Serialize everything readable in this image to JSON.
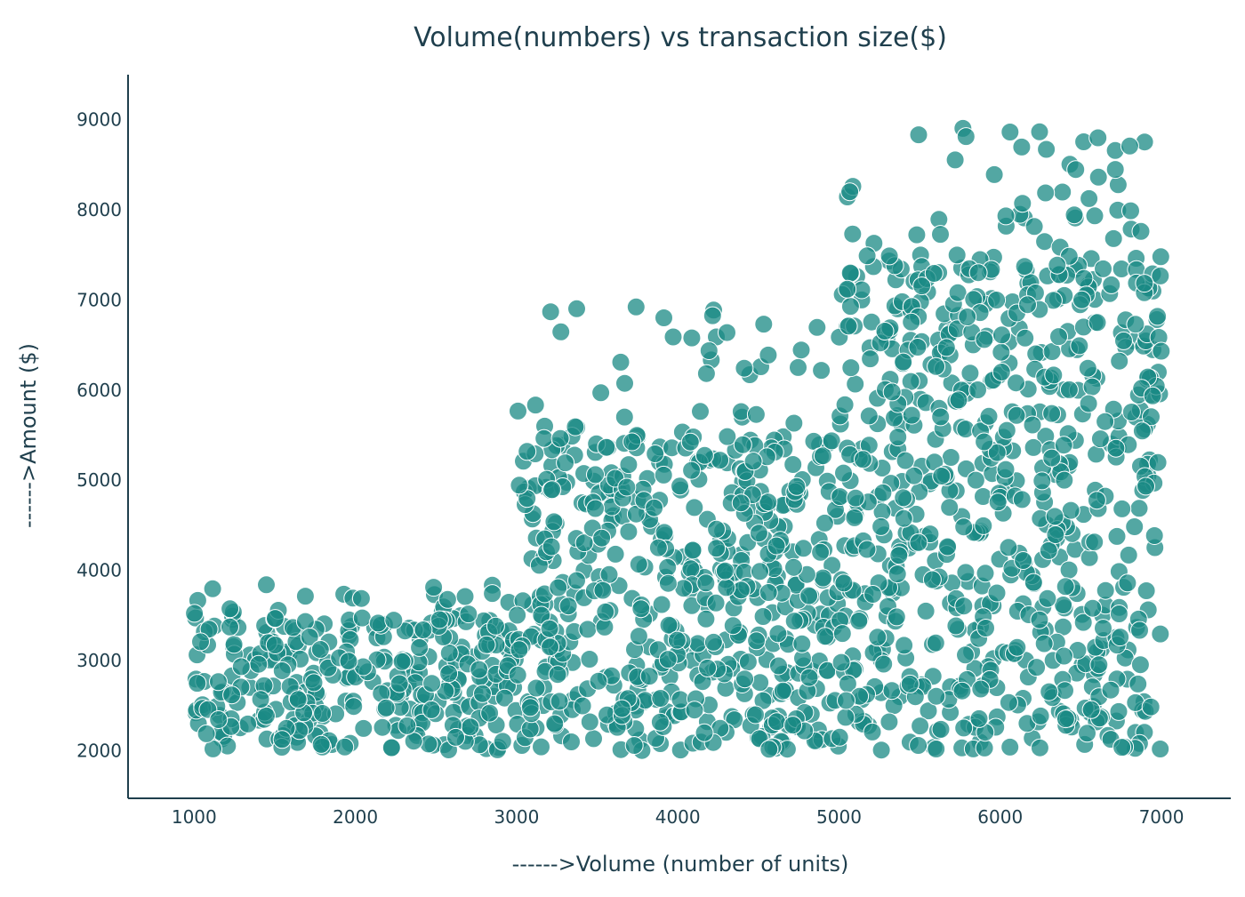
{
  "chart_data": {
    "type": "scatter",
    "title": "Volume(numbers) vs transaction size($)",
    "xlabel": "------>Volume (number of units)",
    "ylabel": "------>Amount ($)",
    "xlim": [
      590,
      7430
    ],
    "ylim": [
      1470,
      9500
    ],
    "xticks": [
      1000,
      2000,
      3000,
      4000,
      5000,
      6000,
      7000
    ],
    "yticks": [
      2000,
      3000,
      4000,
      5000,
      6000,
      7000,
      8000,
      9000
    ],
    "grid": false,
    "marker_color": "#1a8a84",
    "marker_opacity": 0.75,
    "point_count": 1600,
    "segments": [
      {
        "x_range": [
          1000,
          3000
        ],
        "y_range": [
          2000,
          3500
        ],
        "fraction": 0.2,
        "sparse_upper": [
          3500,
          3850
        ]
      },
      {
        "x_range": [
          3000,
          5000
        ],
        "y_range": [
          2000,
          5500
        ],
        "fraction": 0.35,
        "sparse_upper": [
          5500,
          7000
        ]
      },
      {
        "x_range": [
          5000,
          7000
        ],
        "y_range": [
          2000,
          7500
        ],
        "fraction": 0.45,
        "sparse_upper": [
          7500,
          9000
        ]
      }
    ]
  }
}
